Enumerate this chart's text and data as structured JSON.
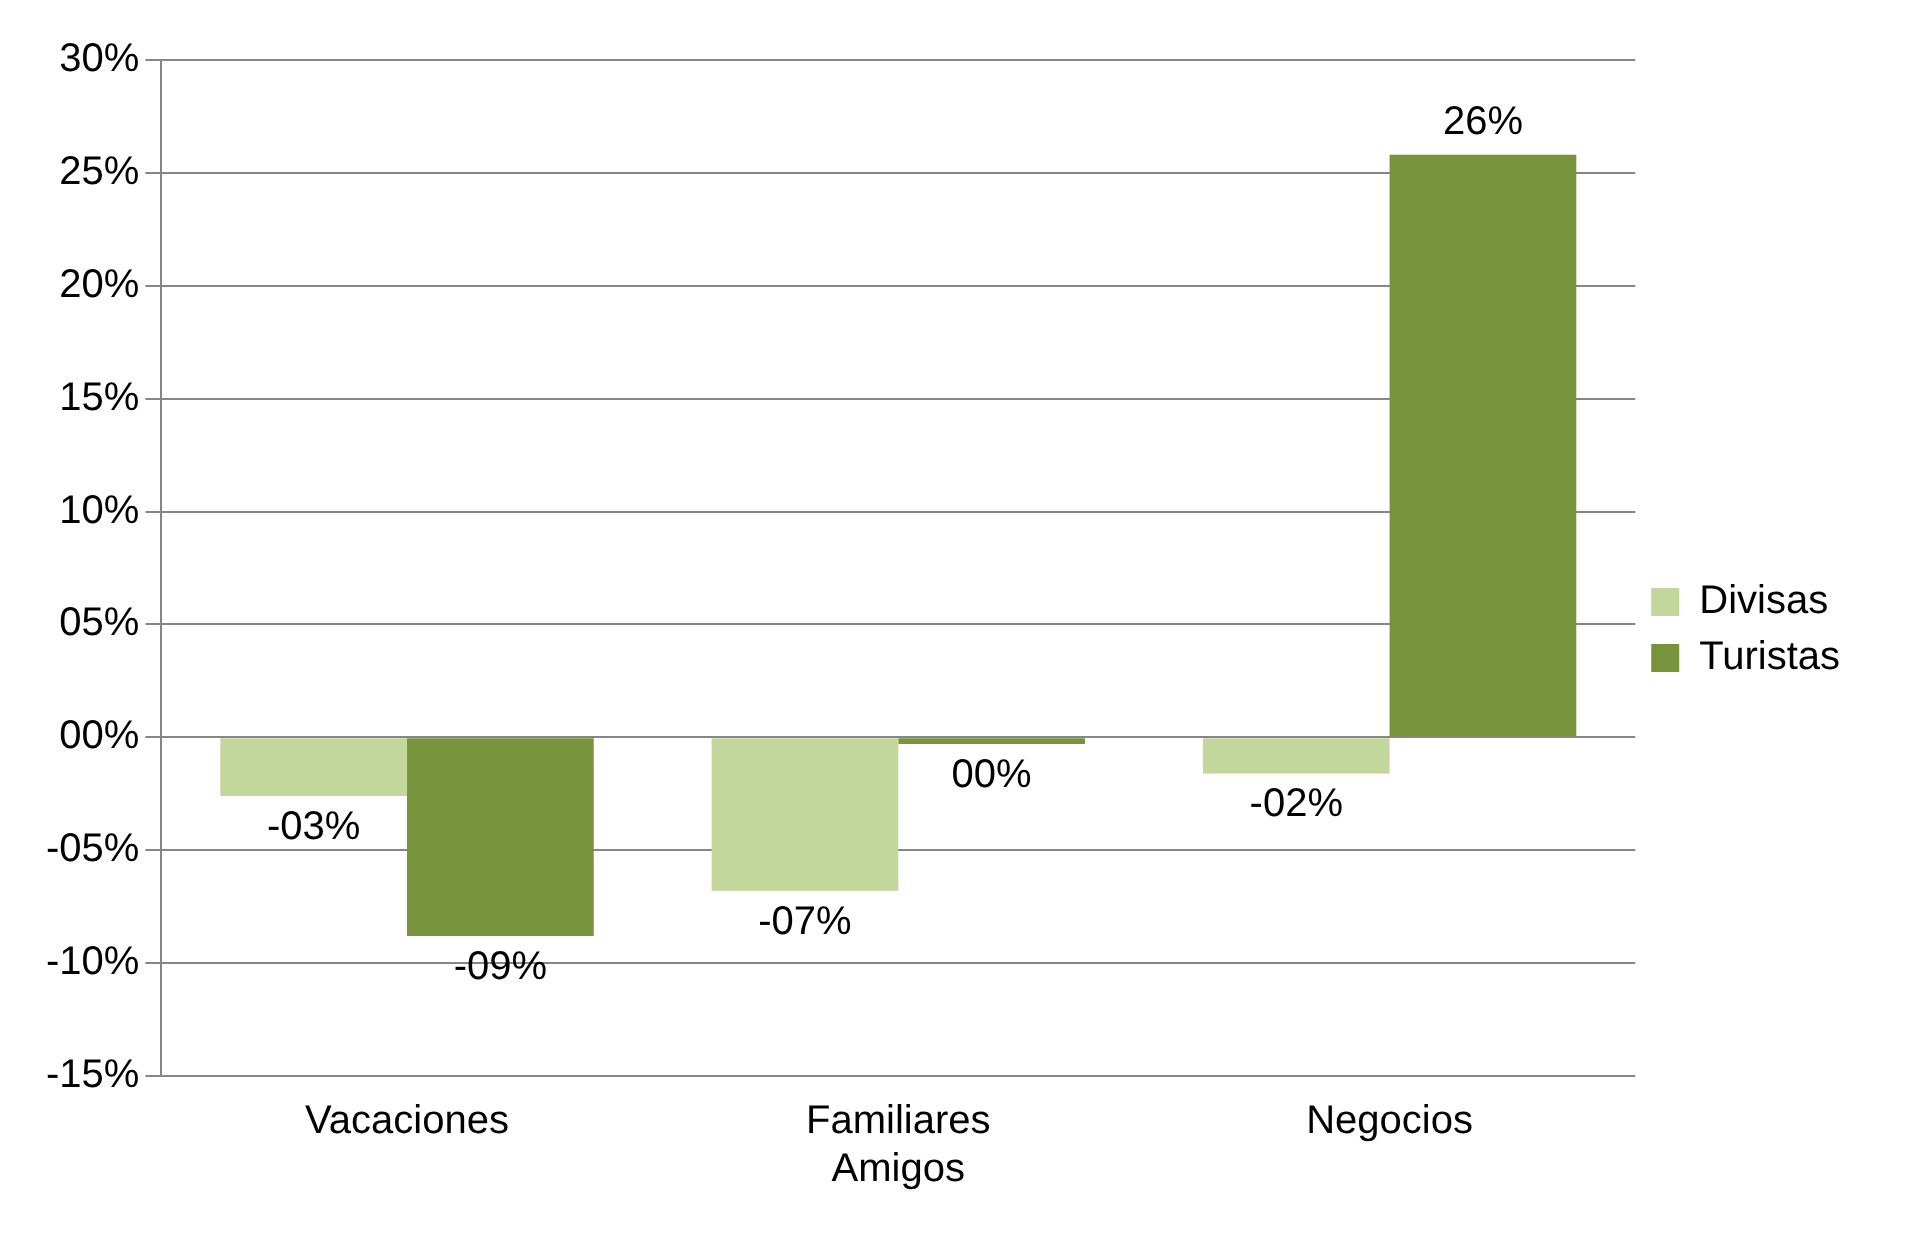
{
  "chart_data": {
    "type": "bar",
    "categories": [
      "Vacaciones",
      "Familiares Amigos",
      "Negocios"
    ],
    "series": [
      {
        "name": "Divisas",
        "color": "#c3d69b",
        "values": [
          -2.6,
          -6.8,
          -1.6
        ],
        "value_labels": [
          "-03%",
          "-07%",
          "-02%"
        ]
      },
      {
        "name": "Turistas",
        "color": "#77933c",
        "values": [
          -8.8,
          -0.3,
          25.8
        ],
        "value_labels": [
          "-09%",
          "00%",
          "26%"
        ]
      }
    ],
    "ylim": [
      -15,
      30
    ],
    "yticks": [
      {
        "value": -15,
        "label": "-15%"
      },
      {
        "value": -10,
        "label": "-10%"
      },
      {
        "value": -5,
        "label": "-05%"
      },
      {
        "value": 0,
        "label": "00%"
      },
      {
        "value": 5,
        "label": "05%"
      },
      {
        "value": 10,
        "label": "10%"
      },
      {
        "value": 15,
        "label": "15%"
      },
      {
        "value": 20,
        "label": "20%"
      },
      {
        "value": 25,
        "label": "25%"
      },
      {
        "value": 30,
        "label": "30%"
      }
    ],
    "grid": "y",
    "legend": "right"
  }
}
